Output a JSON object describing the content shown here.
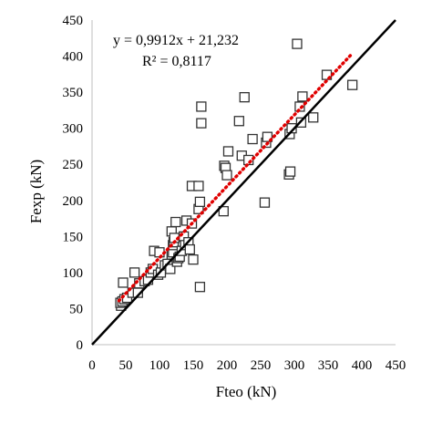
{
  "chart_data": {
    "type": "scatter",
    "xlabel": "Fteo (kN)",
    "ylabel": "Fexp (kN)",
    "xlim": [
      0,
      450
    ],
    "ylim": [
      0,
      450
    ],
    "x_ticks": [
      0,
      50,
      100,
      150,
      200,
      250,
      300,
      350,
      400,
      450
    ],
    "y_ticks": [
      0,
      50,
      100,
      150,
      200,
      250,
      300,
      350,
      400,
      450
    ],
    "grid": false,
    "marker": "square",
    "equation": "y = 0,9912x + 21,232",
    "r_squared": "R² = 0,8117",
    "points": [
      [
        43,
        54
      ],
      [
        42,
        58
      ],
      [
        45,
        60
      ],
      [
        46,
        86
      ],
      [
        48,
        63
      ],
      [
        52,
        65
      ],
      [
        60,
        72
      ],
      [
        63,
        100
      ],
      [
        68,
        72
      ],
      [
        70,
        85
      ],
      [
        78,
        88
      ],
      [
        83,
        90
      ],
      [
        87,
        100
      ],
      [
        90,
        105
      ],
      [
        92,
        130
      ],
      [
        98,
        97
      ],
      [
        100,
        128
      ],
      [
        102,
        100
      ],
      [
        108,
        110
      ],
      [
        112,
        112
      ],
      [
        116,
        105
      ],
      [
        118,
        125
      ],
      [
        118,
        157
      ],
      [
        120,
        128
      ],
      [
        120,
        138
      ],
      [
        121,
        142
      ],
      [
        122,
        148
      ],
      [
        124,
        170
      ],
      [
        126,
        115
      ],
      [
        128,
        120
      ],
      [
        130,
        122
      ],
      [
        133,
        130
      ],
      [
        136,
        150
      ],
      [
        138,
        138
      ],
      [
        140,
        172
      ],
      [
        143,
        142
      ],
      [
        145,
        132
      ],
      [
        148,
        168
      ],
      [
        148,
        220
      ],
      [
        150,
        118
      ],
      [
        158,
        188
      ],
      [
        158,
        220
      ],
      [
        160,
        80
      ],
      [
        160,
        198
      ],
      [
        162,
        307
      ],
      [
        162,
        330
      ],
      [
        195,
        185
      ],
      [
        196,
        248
      ],
      [
        198,
        245
      ],
      [
        200,
        235
      ],
      [
        202,
        268
      ],
      [
        218,
        310
      ],
      [
        222,
        262
      ],
      [
        226,
        343
      ],
      [
        232,
        256
      ],
      [
        238,
        285
      ],
      [
        256,
        197
      ],
      [
        258,
        280
      ],
      [
        260,
        288
      ],
      [
        292,
        236
      ],
      [
        293,
        292
      ],
      [
        294,
        240
      ],
      [
        296,
        300
      ],
      [
        304,
        417
      ],
      [
        308,
        330
      ],
      [
        310,
        308
      ],
      [
        312,
        344
      ],
      [
        328,
        315
      ],
      [
        348,
        374
      ],
      [
        386,
        360
      ]
    ],
    "fit_line": {
      "style": "dotted-red",
      "from": [
        40,
        60.9
      ],
      "to": [
        385,
        402.8
      ]
    },
    "identity_line": {
      "style": "solid-black",
      "from": [
        0,
        0
      ],
      "to": [
        450,
        450
      ]
    }
  }
}
